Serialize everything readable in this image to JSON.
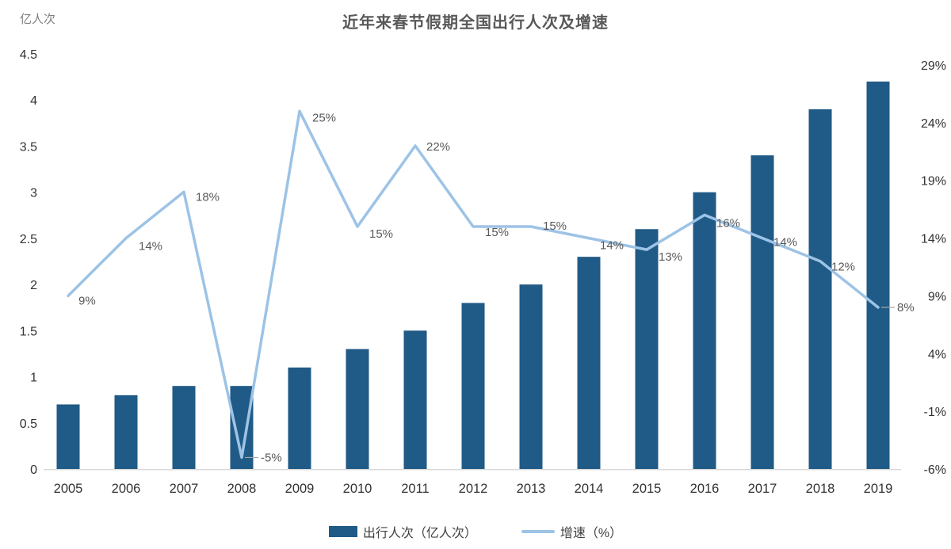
{
  "chart_data": {
    "type": "combo",
    "title": "近年来春节假期全国出行人次及增速",
    "categories": [
      "2005",
      "2006",
      "2007",
      "2008",
      "2009",
      "2010",
      "2011",
      "2012",
      "2013",
      "2014",
      "2015",
      "2016",
      "2017",
      "2018",
      "2019"
    ],
    "series": [
      {
        "name": "出行人次（亿人次）",
        "chart_type": "bar",
        "axis": "left",
        "color": "#205a86",
        "values": [
          0.7,
          0.8,
          0.9,
          0.9,
          1.1,
          1.3,
          1.5,
          1.8,
          2.0,
          2.3,
          2.6,
          3.0,
          3.4,
          3.9,
          4.2
        ]
      },
      {
        "name": "增速（%）",
        "chart_type": "line",
        "axis": "right",
        "color": "#9dc3e6",
        "values": [
          9,
          14,
          18,
          -5,
          25,
          15,
          22,
          15,
          15,
          14,
          13,
          16,
          14,
          12,
          8
        ],
        "point_labels": [
          "9%",
          "14%",
          "18%",
          "-5%",
          "25%",
          "15%",
          "22%",
          "15%",
          "15%",
          "14%",
          "13%",
          "16%",
          "14%",
          "12%",
          "8%"
        ]
      }
    ],
    "left_axis": {
      "title": "亿人次",
      "min": 0,
      "max": 4.5,
      "step": 0.5,
      "tick_labels": [
        "0",
        "0.5",
        "1",
        "1.5",
        "2",
        "2.5",
        "3",
        "3.5",
        "4",
        "4.5"
      ]
    },
    "right_axis": {
      "min": -6,
      "max": 29,
      "step": 5,
      "tick_labels": [
        "-6%",
        "-1%",
        "4%",
        "9%",
        "14%",
        "19%",
        "24%",
        "29%"
      ]
    },
    "grid": false,
    "legend_position": "bottom",
    "colors": {
      "axis_line": "#d9d9d9",
      "tick_text": "#333333",
      "data_label_text": "#595959",
      "leader_line": "#a6a6a6",
      "title_text": "#595959",
      "unit_text": "#7f7f7f"
    }
  }
}
